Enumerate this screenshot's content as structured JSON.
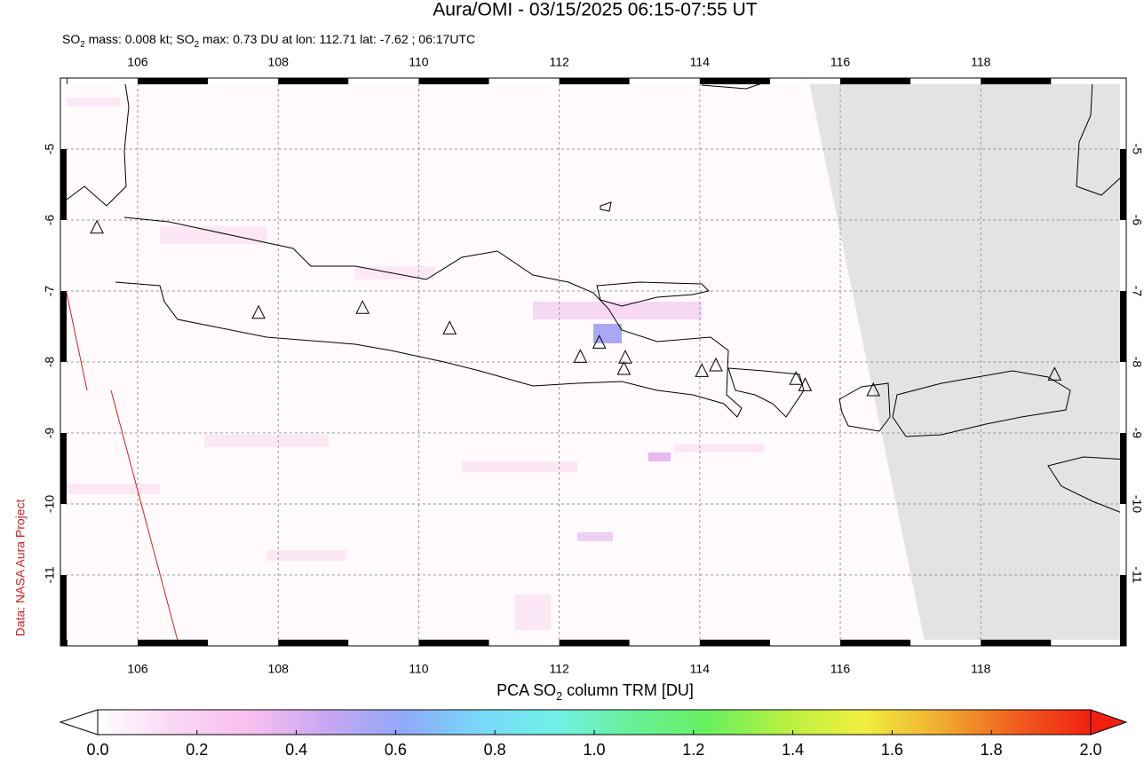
{
  "header": {
    "title": "Aura/OMI - 03/15/2025 06:15-07:55 UT",
    "subtitle": [
      "SO",
      "2",
      " mass: 0.008 kt; SO",
      "2",
      " max: 0.73 DU at lon: 112.71 lat: -7.62 ; 06:17UTC"
    ]
  },
  "map": {
    "lon_range": [
      104.9,
      120.07
    ],
    "lat_range": [
      -12.0,
      -4.0
    ],
    "lon_ticks": [
      106,
      108,
      110,
      112,
      114,
      116,
      118
    ],
    "lat_ticks": [
      -5,
      -6,
      -7,
      -8,
      -9,
      -10,
      -11
    ],
    "volcanoes": [
      [
        105.42,
        -6.11
      ],
      [
        107.72,
        -7.31
      ],
      [
        109.2,
        -7.24
      ],
      [
        110.44,
        -7.53
      ],
      [
        112.3,
        -7.93
      ],
      [
        112.57,
        -7.73
      ],
      [
        112.94,
        -7.94
      ],
      [
        112.92,
        -8.1
      ],
      [
        114.03,
        -8.13
      ],
      [
        114.23,
        -8.05
      ],
      [
        115.37,
        -8.24
      ],
      [
        115.5,
        -8.33
      ],
      [
        116.47,
        -8.4
      ],
      [
        119.05,
        -8.18
      ]
    ]
  },
  "colorbar": {
    "label": [
      "PCA SO",
      "2",
      " column TRM [DU]"
    ],
    "range": [
      0,
      2
    ],
    "colors": [
      "#ffffff",
      "#fbd6f4",
      "#f8bff0",
      "#c9a6f2",
      "#90a8f8",
      "#78d8f8",
      "#70f0e8",
      "#68f098",
      "#68f060",
      "#b8f040",
      "#f0f040",
      "#f0b030",
      "#f06020",
      "#f02010"
    ],
    "ticks": [
      {
        "value": 0,
        "label": "0.0"
      },
      {
        "value": 0.2,
        "label": "0.2"
      },
      {
        "value": 0.4,
        "label": "0.4"
      },
      {
        "value": 0.6,
        "label": "0.6"
      },
      {
        "value": 0.8,
        "label": "0.8"
      },
      {
        "value": 1.0,
        "label": "1.0"
      },
      {
        "value": 1.2,
        "label": "1.2"
      },
      {
        "value": 1.4,
        "label": "1.4"
      },
      {
        "value": 1.6,
        "label": "1.6"
      },
      {
        "value": 1.8,
        "label": "1.8"
      },
      {
        "value": 2.0,
        "label": "2.0"
      }
    ]
  },
  "credit": "Data: NASA Aura Project"
}
